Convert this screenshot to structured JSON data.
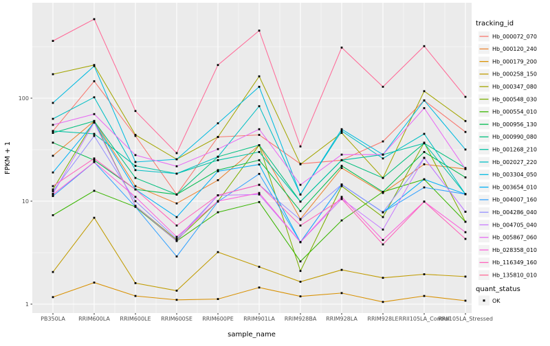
{
  "style": {
    "background": "#FFFFFF",
    "panel_bg": "#EBEBEB",
    "grid_color": "#FFFFFF",
    "tick_label_color": "#4D4D4D",
    "tick_mark_color": "#333333",
    "point_color": "#000000",
    "legend_key_bg": "#F2F2F2"
  },
  "chart_data": {
    "type": "line",
    "title": "",
    "xlabel": "sample_name",
    "ylabel": "FPKM + 1",
    "y_scale": "log10",
    "ylim": [
      0.9,
      850
    ],
    "y_ticks": [
      1,
      10,
      100
    ],
    "y_minor_gridlines": [
      3.162,
      31.62,
      316.2
    ],
    "grid": true,
    "point_shape": "filled-square",
    "legend_position": "right",
    "legend_title_tracking": "tracking_id",
    "legend_title_quant": "quant_status",
    "quant_ok_label": "OK",
    "categories": [
      "PB350LA",
      "RRIM600LA",
      "RRIM600LE",
      "RRIM600SE",
      "RRIM600PE",
      "RRIM901LA",
      "RRIM928BA",
      "RRIM928LA",
      "RRIM928LE",
      "RRII105LA_Control",
      "RRII105LA_Stressed"
    ],
    "series": [
      {
        "name": "Hb_000072_070",
        "color": "#F8766D",
        "values": [
          48,
          146,
          43,
          11.6,
          42,
          44,
          23,
          25,
          38,
          95,
          47
        ]
      },
      {
        "name": "Hb_000120_240",
        "color": "#EA8331",
        "values": [
          27.6,
          60,
          14,
          9.5,
          16,
          35,
          6.7,
          21,
          12,
          22.8,
          20.5
        ]
      },
      {
        "name": "Hb_000179_200",
        "color": "#D89000",
        "values": [
          1.17,
          1.62,
          1.2,
          1.1,
          1.12,
          1.45,
          1.19,
          1.28,
          1.05,
          1.2,
          1.08
        ]
      },
      {
        "name": "Hb_000258_150",
        "color": "#C09B00",
        "values": [
          2.05,
          6.9,
          1.6,
          1.35,
          3.2,
          2.3,
          1.65,
          2.15,
          1.8,
          1.95,
          1.85
        ]
      },
      {
        "name": "Hb_000347_080",
        "color": "#A3A500",
        "values": [
          171,
          210,
          44,
          25.5,
          42,
          163,
          22.8,
          46,
          16.8,
          117,
          60
        ]
      },
      {
        "name": "Hb_000548_030",
        "color": "#7CAE00",
        "values": [
          13,
          60,
          9,
          4.2,
          10,
          35,
          2.1,
          14,
          7,
          37,
          6.3
        ]
      },
      {
        "name": "Hb_000554_010",
        "color": "#39B600",
        "values": [
          7.3,
          12.6,
          8.8,
          4.1,
          7.8,
          9.8,
          2.6,
          6.5,
          12.3,
          16.3,
          6.3
        ]
      },
      {
        "name": "Hb_000956_130",
        "color": "#00BB4E",
        "values": [
          37,
          25,
          13,
          11.6,
          20,
          25,
          8,
          22,
          12.3,
          30,
          17
        ]
      },
      {
        "name": "Hb_000990_080",
        "color": "#00BF7D",
        "values": [
          46,
          60,
          16.8,
          11.6,
          27,
          35,
          9.9,
          25,
          16.8,
          36.5,
          21
        ]
      },
      {
        "name": "Hb_001268_210",
        "color": "#00C1A3",
        "values": [
          48,
          45,
          22,
          18.5,
          25,
          30,
          9.9,
          25,
          28.3,
          36.5,
          11.7
        ]
      },
      {
        "name": "Hb_002027_220",
        "color": "#00BFC4",
        "values": [
          63,
          102,
          20,
          18.5,
          27,
          83.5,
          11.6,
          48,
          26,
          45,
          11.7
        ]
      },
      {
        "name": "Hb_003304_050",
        "color": "#00BAE0",
        "values": [
          90,
          205,
          24,
          25.5,
          57,
          129,
          11.6,
          50,
          28.3,
          95,
          31.7
        ]
      },
      {
        "name": "Hb_003654_010",
        "color": "#00B0F6",
        "values": [
          19,
          58,
          13,
          7,
          19.5,
          22.7,
          4,
          14.5,
          7.8,
          16.3,
          11.7
        ]
      },
      {
        "name": "Hb_004007_160",
        "color": "#35A2FF",
        "values": [
          11.2,
          24,
          8.8,
          2.9,
          9.9,
          18.4,
          4,
          14.5,
          7.8,
          13.6,
          11.7
        ]
      },
      {
        "name": "Hb_004286_040",
        "color": "#9590FF",
        "values": [
          12.5,
          43,
          10,
          4.3,
          11.4,
          14.4,
          6.6,
          14.5,
          7.8,
          26.3,
          7.9
        ]
      },
      {
        "name": "Hb_004705_040",
        "color": "#C77CFF",
        "values": [
          11.8,
          58,
          9,
          4.1,
          11.4,
          11.6,
          4,
          10.5,
          5.3,
          26.3,
          7.9
        ]
      },
      {
        "name": "Hb_005867_060",
        "color": "#E76BF3",
        "values": [
          55,
          70,
          28,
          21.8,
          32,
          50,
          14.4,
          28.3,
          28.3,
          80,
          20.5
        ]
      },
      {
        "name": "Hb_028358_010",
        "color": "#FA62DB",
        "values": [
          11.6,
          24,
          11,
          4.5,
          10,
          12,
          4,
          11,
          4.2,
          9.9,
          5
        ]
      },
      {
        "name": "Hb_116349_160",
        "color": "#FF62BC",
        "values": [
          14,
          26,
          13,
          5.8,
          11.4,
          14.4,
          5.8,
          10.5,
          3.8,
          9.9,
          4.3
        ]
      },
      {
        "name": "Hb_135810_010",
        "color": "#FF6A98",
        "values": [
          360,
          585,
          75,
          29.3,
          210,
          453,
          34,
          310,
          129,
          320,
          103
        ]
      }
    ]
  }
}
